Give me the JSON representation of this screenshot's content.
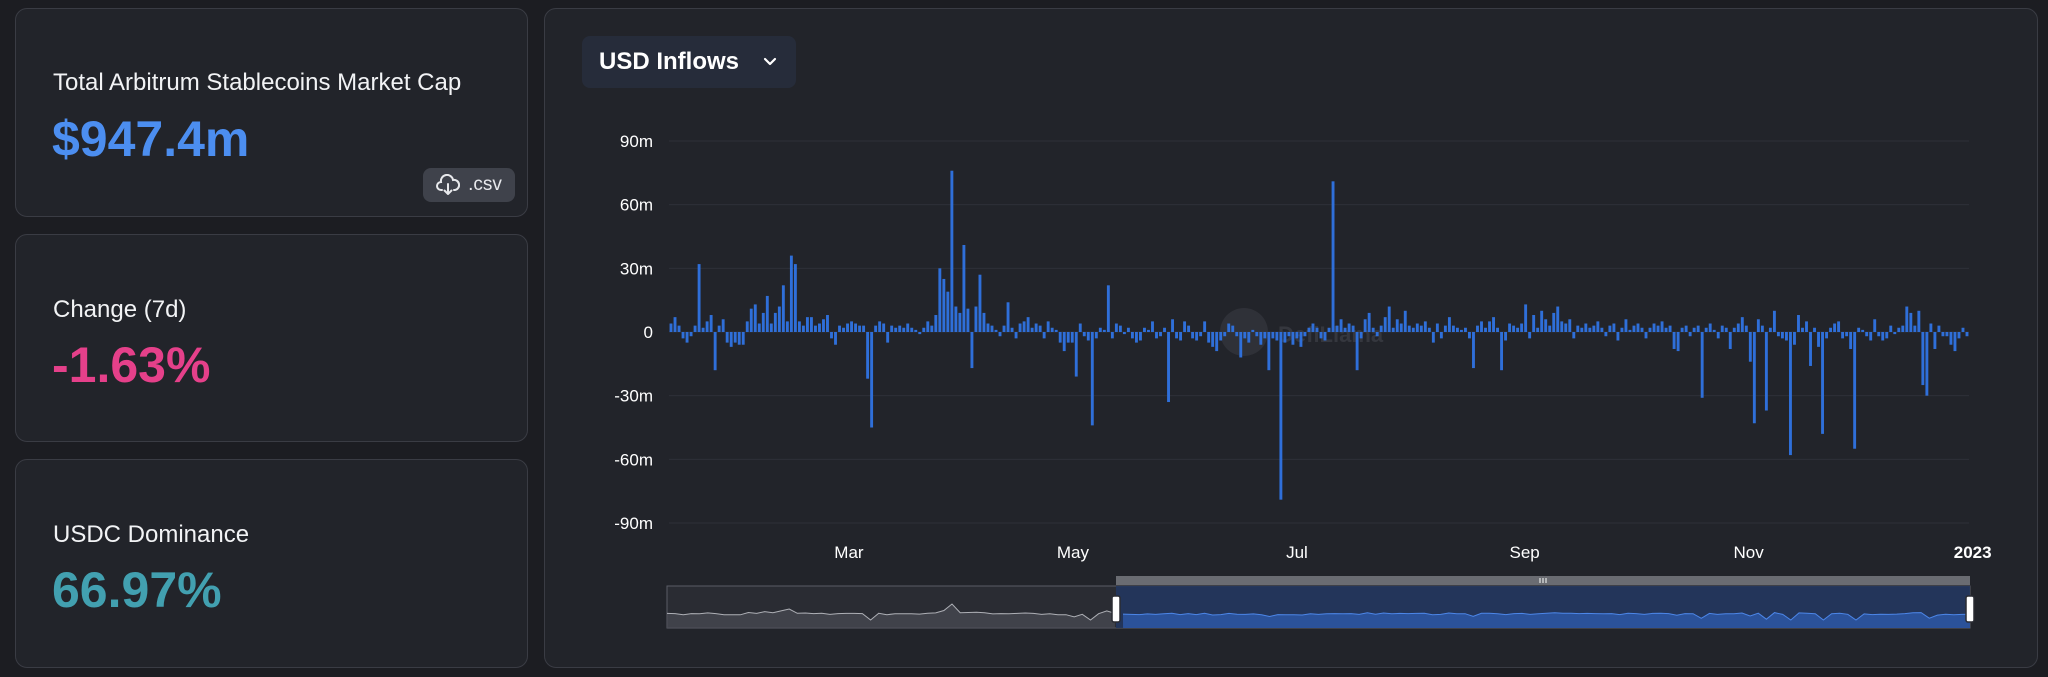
{
  "cards": [
    {
      "label": "Total Arbitrum Stablecoins Market Cap",
      "value": "$947.4m",
      "color": "#4c8ef0"
    },
    {
      "label": "Change (7d)",
      "value": "-1.63%",
      "color": "#e5408a"
    },
    {
      "label": "USDC Dominance",
      "value": "66.97%",
      "color": "#42a0b0"
    }
  ],
  "csv_button": {
    "label": ".csv",
    "icon": "cloud-download-icon"
  },
  "dropdown": {
    "label": "USD Inflows",
    "icon": "chevron-down-icon"
  },
  "watermark": "DefiLlama",
  "colors": {
    "bar": "#2f6fd9",
    "background": "#1c1d22",
    "card": "#22242a"
  },
  "chart_data": {
    "type": "bar",
    "title": "",
    "xlabel": "",
    "ylabel": "",
    "ylim": [
      -90000000,
      90000000
    ],
    "y_ticks": [
      "90m",
      "60m",
      "30m",
      "0",
      "-30m",
      "-60m",
      "-90m"
    ],
    "x_ticks": [
      "Mar",
      "May",
      "Jul",
      "Sep",
      "Nov",
      "2023"
    ],
    "x_range": [
      "2022-01-11",
      "2022-12-31"
    ],
    "grid": true,
    "legend": "none",
    "series": [
      {
        "values": [
          4,
          7,
          3,
          -3,
          -5,
          -2,
          3,
          32,
          2,
          5,
          8,
          -18,
          3,
          6,
          -5,
          -7,
          -5,
          -6,
          -6,
          5,
          11,
          13,
          4,
          9,
          17,
          4,
          9,
          12,
          22,
          5,
          36,
          32,
          5,
          3,
          7,
          7,
          3,
          4,
          6,
          8,
          -3,
          -6,
          3,
          2,
          4,
          5,
          4,
          3,
          3,
          -22,
          -45,
          3,
          5,
          4,
          -5,
          3,
          2,
          3,
          2,
          4,
          2,
          1,
          -1,
          2,
          5,
          3,
          8,
          30,
          25,
          19,
          76,
          12,
          9,
          41,
          11,
          -17,
          12,
          27,
          9,
          4,
          3,
          1,
          -2,
          3,
          14,
          2,
          -3,
          4,
          5,
          7,
          2,
          4,
          3,
          -3,
          5,
          2,
          1,
          -5,
          -9,
          -5,
          -5,
          -21,
          4,
          -2,
          -4,
          -44,
          -3,
          2,
          1,
          22,
          -3,
          4,
          3,
          -1,
          2,
          -3,
          -5,
          -4,
          2,
          1,
          5,
          -3,
          -2,
          2,
          -33,
          6,
          -3,
          -4,
          5,
          3,
          -3,
          -4,
          -2,
          5,
          -5,
          -7,
          -9,
          -4,
          -2,
          4,
          3,
          -2,
          -12,
          -3,
          -5,
          1,
          -2,
          -6,
          -3,
          -18,
          -3,
          -4,
          -79,
          -5,
          -2,
          -6,
          -3,
          -7,
          -2,
          2,
          4,
          2,
          -3,
          -4,
          2,
          71,
          3,
          6,
          2,
          4,
          3,
          -18,
          -3,
          6,
          9,
          2,
          -2,
          3,
          7,
          12,
          2,
          6,
          4,
          10,
          3,
          2,
          4,
          3,
          5,
          2,
          -5,
          4,
          -3,
          3,
          7,
          3,
          2,
          1,
          2,
          -3,
          -17,
          3,
          5,
          2,
          5,
          7,
          2,
          -18,
          -4,
          4,
          3,
          2,
          4,
          13,
          -3,
          8,
          2,
          10,
          6,
          3,
          9,
          12,
          5,
          4,
          6,
          -3,
          3,
          2,
          4,
          2,
          3,
          5,
          2,
          -2,
          3,
          4,
          -4,
          2,
          6,
          1,
          3,
          4,
          2,
          -3,
          2,
          4,
          3,
          5,
          2,
          3,
          -8,
          -9,
          2,
          3,
          -2,
          2,
          3,
          -31,
          2,
          4,
          1,
          -3,
          3,
          2,
          -8,
          2,
          4,
          7,
          3,
          -14,
          -43,
          6,
          3,
          -37,
          2,
          10,
          -2,
          -3,
          -4,
          -58,
          -6,
          8,
          2,
          5,
          -16,
          2,
          -7,
          -48,
          -3,
          2,
          4,
          5,
          -3,
          -2,
          -8,
          -55,
          2,
          1,
          -2,
          -4,
          6,
          -2,
          -4,
          -3,
          3,
          -1,
          2,
          3,
          12,
          9,
          3,
          10,
          -25,
          -30,
          4,
          -8,
          3,
          -2,
          -2,
          -6,
          -9,
          -3,
          2,
          -2
        ]
      }
    ]
  }
}
